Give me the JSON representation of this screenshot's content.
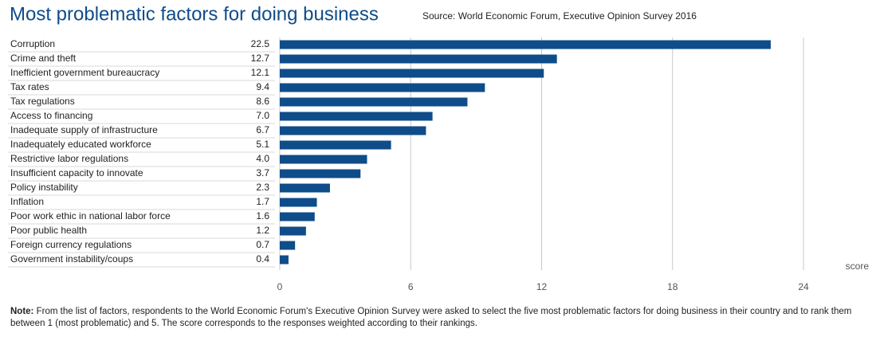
{
  "chart_data": {
    "type": "barh",
    "title": "Most problematic factors for doing business",
    "subtitle": "Source: World Economic Forum, Executive Opinion Survey 2016",
    "xlabel": "score",
    "categories": [
      "Corruption",
      "Crime and theft",
      "Inefficient government bureaucracy",
      "Tax rates",
      "Tax regulations",
      "Access to financing",
      "Inadequate supply of infrastructure",
      "Inadequately educated workforce",
      "Restrictive labor regulations",
      "Insufficient capacity to innovate",
      "Policy instability",
      "Inflation",
      "Poor work ethic in national labor force",
      "Poor public health",
      "Foreign currency regulations",
      "Government instability/coups"
    ],
    "values": [
      22.5,
      12.7,
      12.1,
      9.4,
      8.6,
      7.0,
      6.7,
      5.1,
      4.0,
      3.7,
      2.3,
      1.7,
      1.6,
      1.2,
      0.7,
      0.4
    ],
    "value_labels": [
      "22.5",
      "12.7",
      "12.1",
      "9.4",
      "8.6",
      "7.0",
      "6.7",
      "5.1",
      "4.0",
      "3.7",
      "2.3",
      "1.7",
      "1.6",
      "1.2",
      "0.7",
      "0.4"
    ],
    "color": "#0f4c8a",
    "xlim": [
      0,
      24
    ],
    "xticks": [
      0,
      6,
      12,
      18,
      24
    ],
    "grid": true,
    "note": {
      "label": "Note:",
      "text": "From the list of factors, respondents to the World Economic Forum's Executive Opinion Survey were asked to select the five most problematic factors for doing business in their country and to rank them between 1 (most problematic) and 5. The score corresponds to the responses weighted according to their rankings."
    }
  }
}
